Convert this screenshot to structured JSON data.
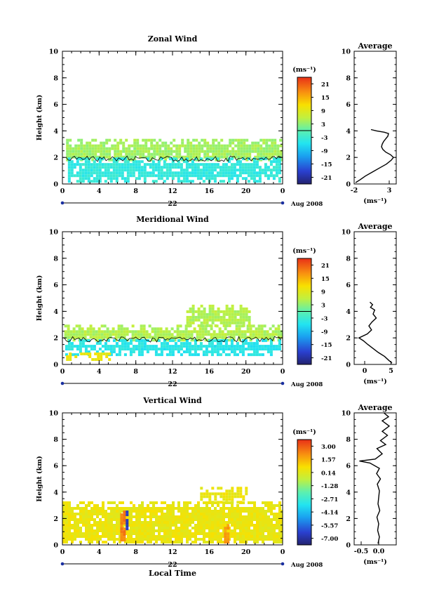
{
  "chart_data": [
    {
      "type": "heatmap",
      "title": "Zonal Wind",
      "ylabel": "Height (km)",
      "xlabel": "",
      "y_ticks": [
        "0",
        "2",
        "4",
        "6",
        "8",
        "10"
      ],
      "x_ticks": [
        "0",
        "4",
        "8",
        "12",
        "16",
        "20",
        "0"
      ],
      "ylim": [
        0,
        10
      ],
      "xlim": [
        0,
        24
      ],
      "date_day": "22",
      "date_month": "Aug 2008",
      "colorbar": {
        "unit": "(ms⁻¹)",
        "labels": [
          "21",
          "15",
          "9",
          "3",
          "-3",
          "-9",
          "-15",
          "-21"
        ],
        "range": [
          -24,
          24
        ],
        "zero_line": true
      },
      "layers": [
        {
          "x0": 0.4,
          "x1": 24,
          "y0": 1.8,
          "y1": 3.4,
          "value": 4
        },
        {
          "x0": 0.6,
          "x1": 23.6,
          "y0": 0.3,
          "y1": 2.0,
          "value": -4
        }
      ],
      "avg": {
        "title": "Average",
        "xlabel": "(ms⁻¹)",
        "x_ticks": [
          "-2",
          "3"
        ],
        "xlim": [
          -2,
          4
        ],
        "ylim": [
          0,
          10
        ],
        "profile": [
          [
            -1.8,
            0.1
          ],
          [
            -1.2,
            0.3
          ],
          [
            -0.4,
            0.6
          ],
          [
            0.6,
            0.9
          ],
          [
            1.6,
            1.2
          ],
          [
            2.6,
            1.5
          ],
          [
            3.3,
            1.8
          ],
          [
            3.6,
            2.0
          ],
          [
            3.2,
            2.2
          ],
          [
            2.5,
            2.4
          ],
          [
            2.1,
            2.6
          ],
          [
            1.9,
            2.8
          ],
          [
            2.0,
            3.0
          ],
          [
            2.2,
            3.2
          ],
          [
            2.5,
            3.4
          ],
          [
            2.8,
            3.6
          ],
          [
            2.9,
            3.8
          ],
          [
            2.3,
            3.9
          ],
          [
            1.2,
            4.0
          ],
          [
            0.4,
            4.1
          ]
        ]
      }
    },
    {
      "type": "heatmap",
      "title": "Meridional Wind",
      "ylabel": "Height (km)",
      "xlabel": "",
      "y_ticks": [
        "0",
        "2",
        "4",
        "6",
        "8",
        "10"
      ],
      "x_ticks": [
        "0",
        "4",
        "8",
        "12",
        "16",
        "20",
        "0"
      ],
      "ylim": [
        0,
        10
      ],
      "xlim": [
        0,
        24
      ],
      "date_day": "22",
      "date_month": "Aug 2008",
      "colorbar": {
        "unit": "(ms⁻¹)",
        "labels": [
          "21",
          "15",
          "9",
          "3",
          "-3",
          "-9",
          "-15",
          "-21"
        ],
        "range": [
          -24,
          24
        ],
        "zero_line": true
      },
      "layers": [
        {
          "x0": 0.2,
          "x1": 24,
          "y0": 1.8,
          "y1": 3.0,
          "value": 5
        },
        {
          "x0": 0.3,
          "x1": 23.8,
          "y0": 0.8,
          "y1": 1.9,
          "value": -5
        },
        {
          "x0": 0.4,
          "x1": 5.0,
          "y0": 0.3,
          "y1": 0.9,
          "value": 10
        },
        {
          "x0": 13.5,
          "x1": 20.5,
          "y0": 3.0,
          "y1": 4.5,
          "value": 5
        }
      ],
      "avg": {
        "title": "Average",
        "xlabel": "(ms⁻¹)",
        "x_ticks": [
          "0",
          "5"
        ],
        "xlim": [
          -2,
          6
        ],
        "ylim": [
          0,
          10
        ],
        "profile": [
          [
            5.2,
            0.1
          ],
          [
            4.6,
            0.3
          ],
          [
            3.8,
            0.6
          ],
          [
            2.6,
            0.9
          ],
          [
            1.6,
            1.2
          ],
          [
            0.6,
            1.5
          ],
          [
            -0.3,
            1.8
          ],
          [
            -1.1,
            2.0
          ],
          [
            0.5,
            2.3
          ],
          [
            1.3,
            2.6
          ],
          [
            0.8,
            2.9
          ],
          [
            1.4,
            3.2
          ],
          [
            2.2,
            3.5
          ],
          [
            1.6,
            3.8
          ],
          [
            1.9,
            4.1
          ],
          [
            1.1,
            4.3
          ],
          [
            1.5,
            4.5
          ],
          [
            1.0,
            4.7
          ]
        ]
      }
    },
    {
      "type": "heatmap",
      "title": "Vertical Wind",
      "ylabel": "Height (km)",
      "xlabel": "Local Time",
      "y_ticks": [
        "0",
        "2",
        "4",
        "6",
        "8",
        "10"
      ],
      "x_ticks": [
        "0",
        "4",
        "8",
        "12",
        "16",
        "20",
        "0"
      ],
      "ylim": [
        0,
        10
      ],
      "xlim": [
        0,
        24
      ],
      "date_day": "22",
      "date_month": "Aug 2008",
      "colorbar": {
        "unit": "(ms⁻¹)",
        "labels": [
          "3.00",
          "1.57",
          "0.14",
          "-1.28",
          "-2.71",
          "-4.14",
          "-5.57",
          "-7.00"
        ],
        "range": [
          -7.7,
          3.7
        ],
        "zero_line": false
      },
      "layers": [
        {
          "x0": 0.0,
          "x1": 24,
          "y0": 0.2,
          "y1": 3.3,
          "value": 0.4
        },
        {
          "x0": 15.0,
          "x1": 20.0,
          "y0": 3.3,
          "y1": 4.4,
          "value": 0.4
        },
        {
          "x0": 6.3,
          "x1": 6.8,
          "y0": 0.3,
          "y1": 2.6,
          "value": 2.4
        },
        {
          "x0": 6.9,
          "x1": 7.2,
          "y0": 1.2,
          "y1": 2.6,
          "value": -6.5
        },
        {
          "x0": 17.6,
          "x1": 18.2,
          "y0": 0.3,
          "y1": 1.8,
          "value": 1.9
        }
      ],
      "avg": {
        "title": "Average",
        "xlabel": "(ms⁻¹)",
        "x_ticks": [
          "-0.5",
          "0.0"
        ],
        "xlim": [
          -0.7,
          0.5
        ],
        "ylim": [
          0,
          10
        ],
        "profile": [
          [
            -0.02,
            0.1
          ],
          [
            0.02,
            0.6
          ],
          [
            -0.03,
            1.1
          ],
          [
            0.0,
            1.6
          ],
          [
            -0.05,
            2.1
          ],
          [
            0.03,
            2.6
          ],
          [
            -0.02,
            3.1
          ],
          [
            0.0,
            3.6
          ],
          [
            0.02,
            4.1
          ],
          [
            -0.04,
            4.6
          ],
          [
            0.05,
            5.0
          ],
          [
            -0.06,
            5.4
          ],
          [
            0.02,
            5.8
          ],
          [
            -0.25,
            6.2
          ],
          [
            -0.55,
            6.35
          ],
          [
            -0.1,
            6.5
          ],
          [
            0.1,
            6.9
          ],
          [
            -0.05,
            7.3
          ],
          [
            0.2,
            7.6
          ],
          [
            0.05,
            7.9
          ],
          [
            0.25,
            8.3
          ],
          [
            0.1,
            8.6
          ],
          [
            0.3,
            9.0
          ],
          [
            0.1,
            9.4
          ],
          [
            0.28,
            9.7
          ],
          [
            0.15,
            10.0
          ]
        ]
      }
    }
  ]
}
